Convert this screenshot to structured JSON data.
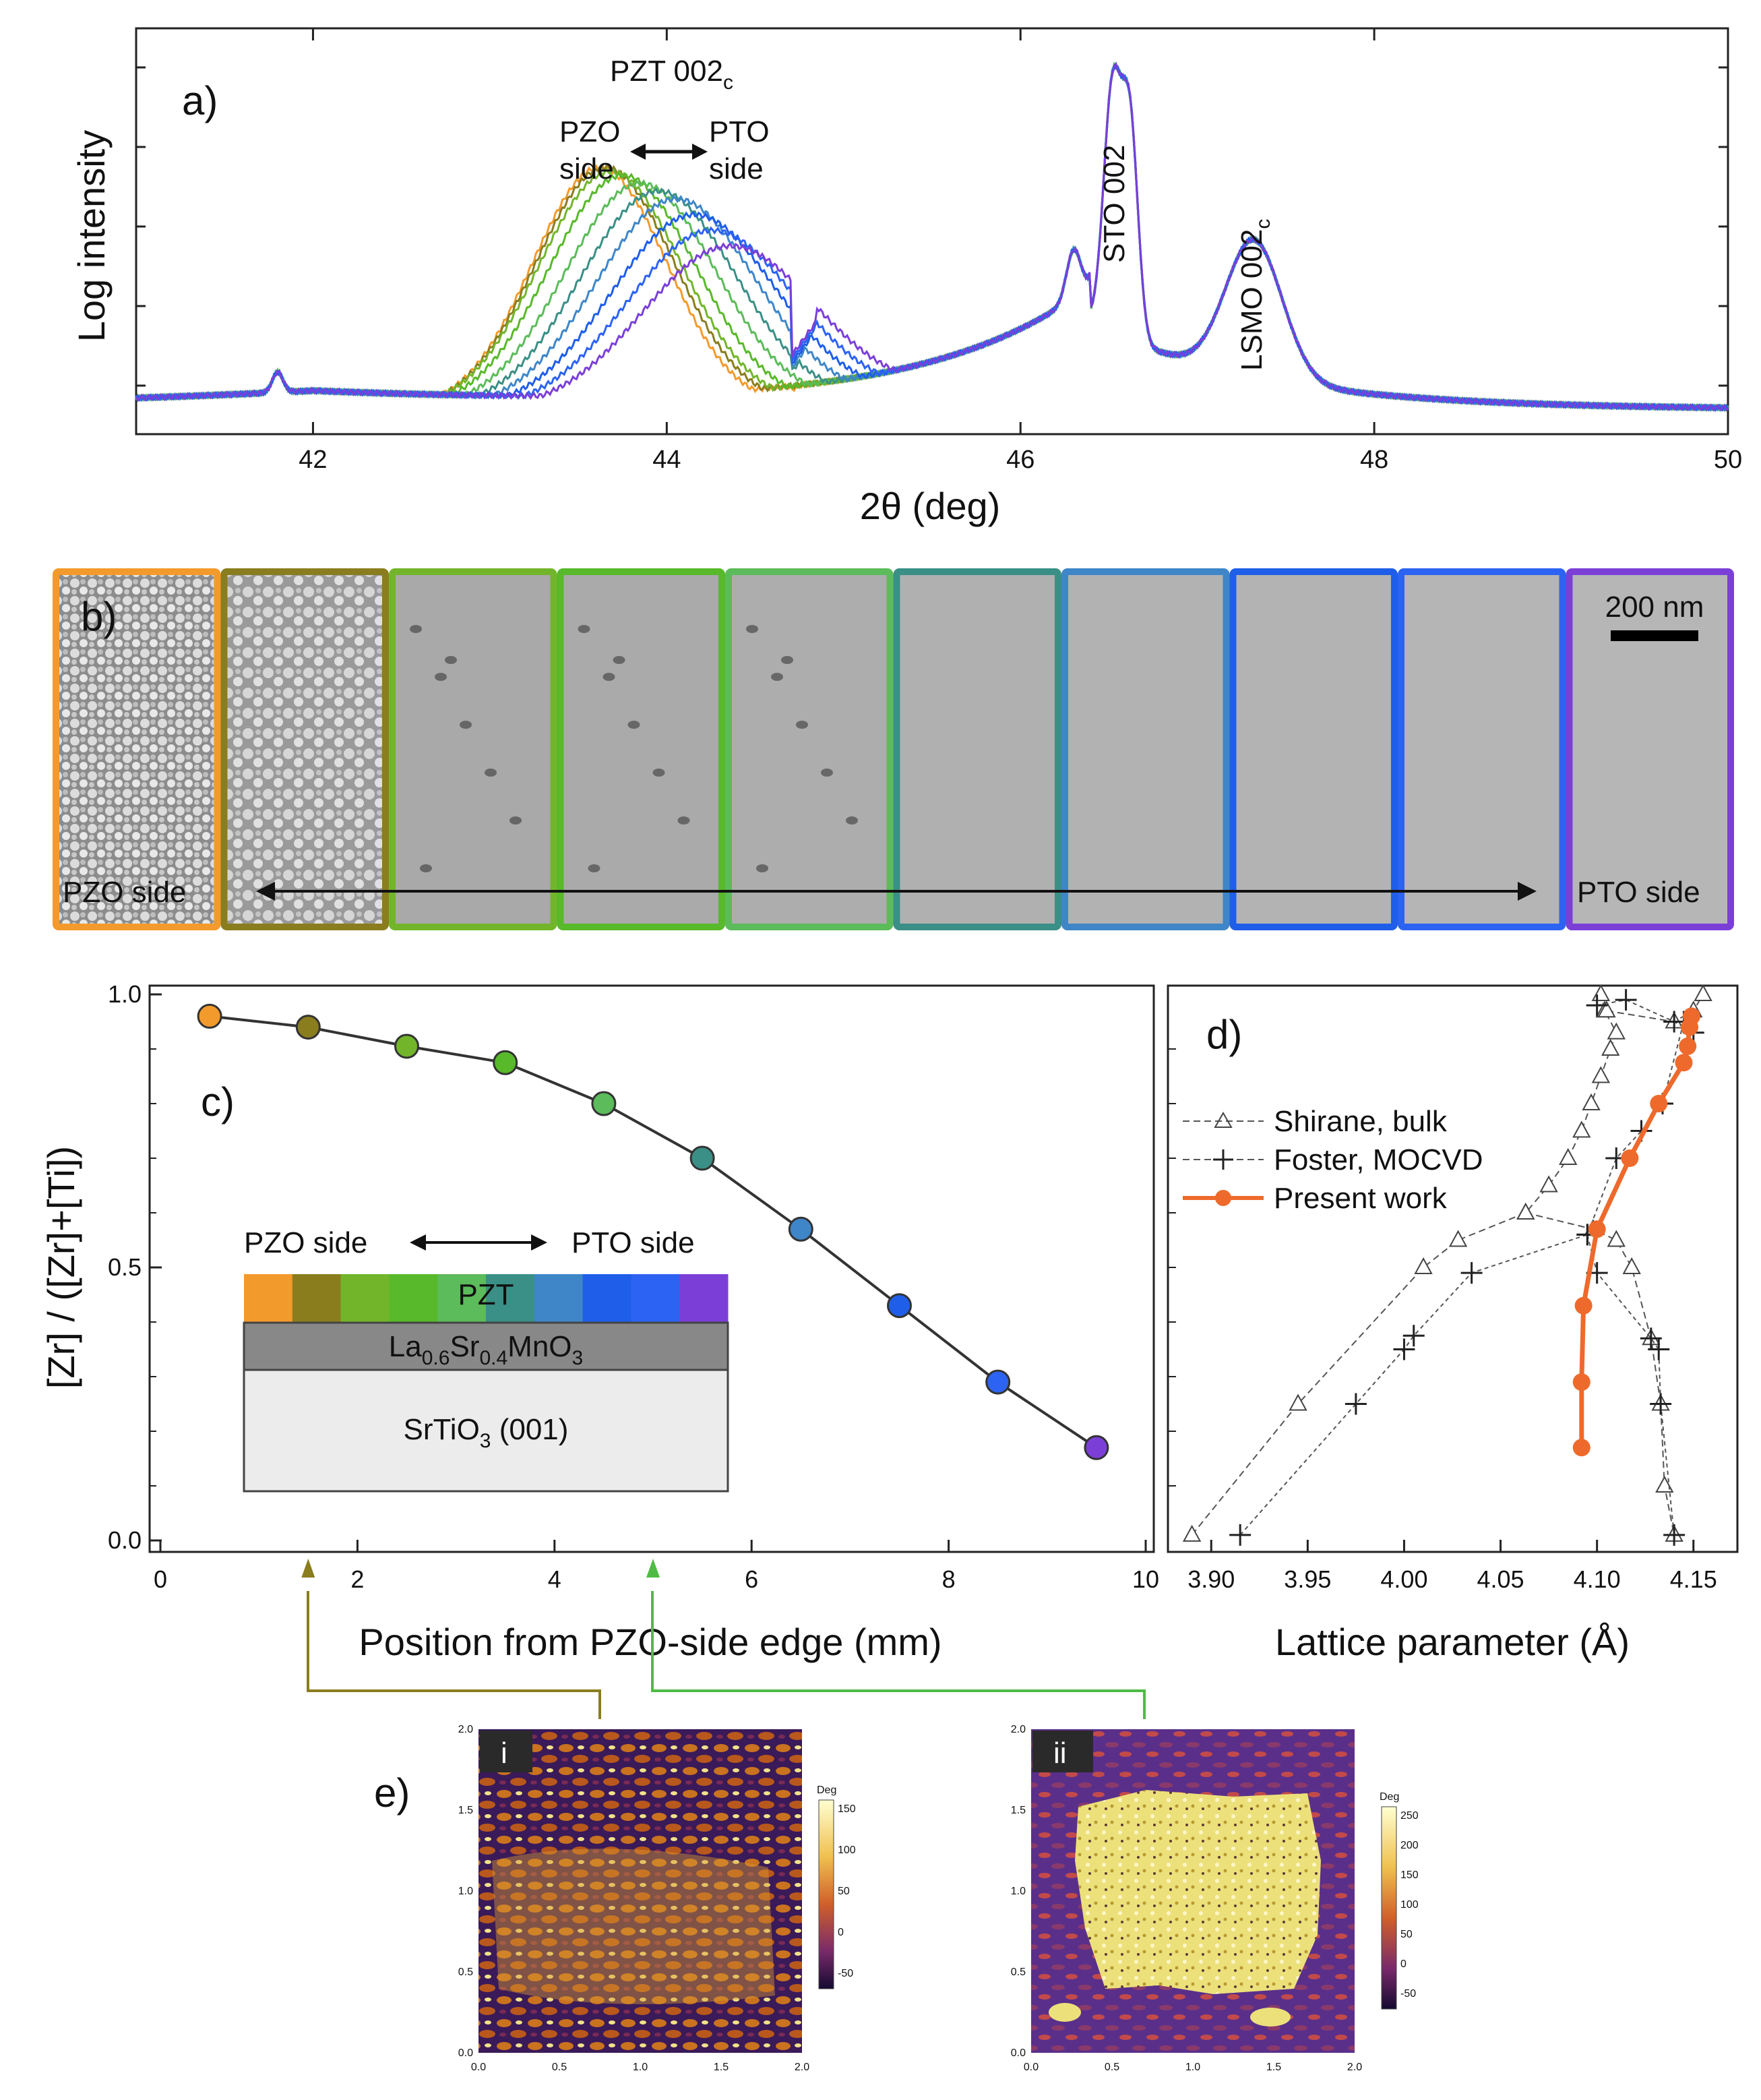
{
  "colors": {
    "gradient": [
      "#f39a2c",
      "#8a7d1e",
      "#72b52b",
      "#58b92a",
      "#5cbb5a",
      "#3a8f86",
      "#3e86c8",
      "#1f5ee8",
      "#2d63f2",
      "#7b3fd8"
    ],
    "present_work": "#ee6a2c",
    "reference": "#555555"
  },
  "chart_data": [
    {
      "panel": "a)",
      "type": "line",
      "xlabel": "2θ (deg)",
      "ylabel": "Log intensity",
      "xlim": [
        41,
        50
      ],
      "xticks": [
        42,
        44,
        46,
        48,
        50
      ],
      "annotations": {
        "pzt": "PZT 002",
        "pzt_sub": "c",
        "pzo_line1": "PZO",
        "pzo_line2": "side",
        "pto_line1": "PTO",
        "pto_line2": "side",
        "sto": "STO 002",
        "lsmo": "LSMO 002",
        "lsmo_sub": "c"
      },
      "pzt_peak_positions_deg": [
        43.62,
        43.65,
        43.68,
        43.75,
        43.85,
        43.95,
        44.05,
        44.15,
        44.25,
        44.35
      ],
      "pzt_peak_log_levels": [
        0.7,
        0.7,
        0.69,
        0.68,
        0.66,
        0.64,
        0.62,
        0.58,
        0.54,
        0.5
      ]
    },
    {
      "panel": "c)",
      "type": "line",
      "xlabel": "Position from PZO-side edge (mm)",
      "ylabel": "[Zr] / ([Zr]+[Ti])",
      "xlim": [
        0,
        10
      ],
      "ylim": [
        0,
        1
      ],
      "xticks": [
        0,
        2,
        4,
        6,
        8,
        10
      ],
      "yticks": [
        "0.0",
        "0.5",
        "1.0"
      ],
      "x": [
        0.5,
        1.5,
        2.5,
        3.5,
        4.5,
        5.5,
        6.5,
        7.5,
        8.5,
        9.5
      ],
      "y": [
        0.96,
        0.94,
        0.905,
        0.875,
        0.8,
        0.7,
        0.57,
        0.43,
        0.29,
        0.17
      ],
      "markers_at_mm": [
        1.5,
        5.0
      ]
    },
    {
      "panel": "d)",
      "type": "line",
      "xlabel": "Lattice parameter (Å)",
      "xlim": [
        3.88,
        4.17
      ],
      "ylim": [
        0,
        1
      ],
      "xticks": [
        "3.90",
        "3.95",
        "4.00",
        "4.05",
        "4.10",
        "4.15"
      ],
      "series": [
        {
          "name": "Shirane, bulk",
          "marker": "triangle",
          "branches": [
            {
              "x": [
                3.89,
                3.945,
                4.01,
                4.028,
                4.063,
                4.075,
                4.085,
                4.092,
                4.097,
                4.102,
                4.107,
                4.11,
                4.104,
                4.102
              ],
              "y": [
                0.01,
                0.25,
                0.5,
                0.55,
                0.6,
                0.65,
                0.7,
                0.75,
                0.8,
                0.85,
                0.9,
                0.93,
                0.97,
                1.0
              ]
            },
            {
              "x": [
                4.063,
                4.098,
                4.11,
                4.118,
                4.128,
                4.133,
                4.135,
                4.14
              ],
              "y": [
                0.6,
                0.57,
                0.55,
                0.5,
                0.37,
                0.25,
                0.1,
                0.01
              ]
            },
            {
              "x": [
                4.105,
                4.14,
                4.15,
                4.155
              ],
              "y": [
                0.97,
                0.95,
                0.97,
                1.0
              ]
            }
          ]
        },
        {
          "name": "Foster, MOCVD",
          "marker": "plus",
          "branches": [
            {
              "x": [
                3.915,
                3.975,
                4.0,
                4.005,
                4.035,
                4.095,
                4.11,
                4.123,
                4.134,
                4.145
              ],
              "y": [
                0.01,
                0.25,
                0.35,
                0.375,
                0.49,
                0.56,
                0.7,
                0.75,
                0.8,
                0.95
              ]
            },
            {
              "x": [
                4.095,
                4.1,
                4.128,
                4.132,
                4.133,
                4.14
              ],
              "y": [
                0.56,
                0.49,
                0.37,
                0.35,
                0.25,
                0.01
              ]
            },
            {
              "x": [
                4.1,
                4.115,
                4.14,
                4.15
              ],
              "y": [
                0.98,
                0.99,
                0.95,
                0.93
              ]
            }
          ]
        },
        {
          "name": "Present work",
          "marker": "circle",
          "x": [
            4.092,
            4.092,
            4.093,
            4.1,
            4.117,
            4.132,
            4.145,
            4.147,
            4.148,
            4.149
          ],
          "y": [
            0.17,
            0.29,
            0.43,
            0.57,
            0.7,
            0.8,
            0.875,
            0.905,
            0.94,
            0.96
          ]
        }
      ]
    }
  ],
  "panel_b": {
    "label": "b)",
    "scale_bar": "200 nm",
    "left_label": "PZO side",
    "right_label": "PTO side"
  },
  "panel_c": {
    "label": "c)",
    "stack": {
      "left": "PZO side",
      "right": "PTO side",
      "pzt": "PZT",
      "lsmo_a": "La",
      "lsmo_a_sub": "0.6",
      "lsmo_b": "Sr",
      "lsmo_b_sub": "0.4",
      "lsmo_c": "MnO",
      "lsmo_c_sub": "3",
      "sto_a": "SrTiO",
      "sto_sub": "3",
      "sto_b": " (001)"
    }
  },
  "panel_d": {
    "label": "d)"
  },
  "panel_e": {
    "label": "e)",
    "maps": [
      {
        "tag": "i",
        "colorbar_title": "Deg",
        "colorbar_ticks": [
          "150",
          "100",
          "50",
          "0",
          "-50"
        ],
        "axis_ticks": [
          "0.0",
          "0.5",
          "1.0",
          "1.5",
          "2.0"
        ]
      },
      {
        "tag": "ii",
        "colorbar_title": "Deg",
        "colorbar_ticks": [
          "250",
          "200",
          "150",
          "100",
          "50",
          "0",
          "-50"
        ],
        "axis_ticks": [
          "0.0",
          "0.5",
          "1.0",
          "1.5",
          "2.0"
        ]
      }
    ]
  }
}
